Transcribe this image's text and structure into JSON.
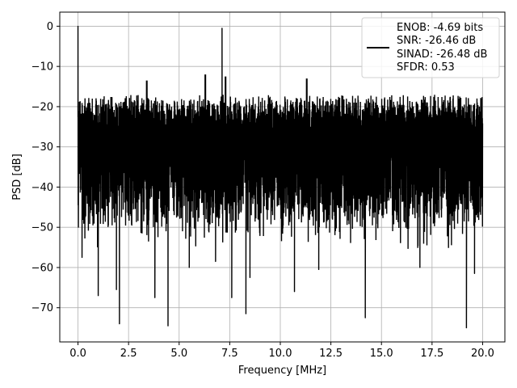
{
  "chart_data": {
    "type": "line",
    "xlabel": "Frequency [MHz]",
    "ylabel": "PSD [dB]",
    "xlim": [
      -0.9,
      21.1
    ],
    "ylim": [
      -78.5,
      3.5
    ],
    "x_ticks": [
      0.0,
      2.5,
      5.0,
      7.5,
      10.0,
      12.5,
      15.0,
      17.5,
      20.0
    ],
    "x_tick_labels": [
      "0.0",
      "2.5",
      "5.0",
      "7.5",
      "10.0",
      "12.5",
      "15.0",
      "17.5",
      "20.0"
    ],
    "y_ticks": [
      0,
      -10,
      -20,
      -30,
      -40,
      -50,
      -60,
      -70
    ],
    "y_tick_labels": [
      "0",
      "−10",
      "−20",
      "−30",
      "−40",
      "−50",
      "−60",
      "−70"
    ],
    "grid": true,
    "legend_placement": "upper-right",
    "series": [
      {
        "color": "#000000",
        "frequency_range": [
          0.0,
          20.0
        ],
        "noise_floor_band": [
          -47,
          -17
        ],
        "upper_envelope_peaks": [
          {
            "x": 3.4,
            "y": -13.5
          },
          {
            "x": 6.3,
            "y": -12.0
          },
          {
            "x": 7.3,
            "y": -12.5
          },
          {
            "x": 11.3,
            "y": -13.0
          }
        ],
        "tones": [
          {
            "x": 0.0,
            "y": 0.0
          },
          {
            "x": 7.12,
            "y": -0.5
          }
        ],
        "deep_nulls": [
          {
            "x": 0.2,
            "y": -57.5
          },
          {
            "x": 1.0,
            "y": -67.0
          },
          {
            "x": 1.9,
            "y": -65.5
          },
          {
            "x": 2.05,
            "y": -74.0
          },
          {
            "x": 3.8,
            "y": -67.5
          },
          {
            "x": 4.45,
            "y": -74.5
          },
          {
            "x": 5.5,
            "y": -60.0
          },
          {
            "x": 6.8,
            "y": -58.5
          },
          {
            "x": 7.6,
            "y": -67.5
          },
          {
            "x": 8.3,
            "y": -71.5
          },
          {
            "x": 8.5,
            "y": -62.5
          },
          {
            "x": 10.7,
            "y": -66.0
          },
          {
            "x": 11.9,
            "y": -60.5
          },
          {
            "x": 14.2,
            "y": -72.5
          },
          {
            "x": 16.9,
            "y": -60.0
          },
          {
            "x": 19.2,
            "y": -75.0
          },
          {
            "x": 19.6,
            "y": -61.5
          }
        ]
      }
    ],
    "legend": {
      "lines": [
        "ENOB: -4.69 bits",
        "SNR: -26.46 dB",
        "SINAD: -26.48 dB",
        "SFDR: 0.53"
      ]
    }
  }
}
